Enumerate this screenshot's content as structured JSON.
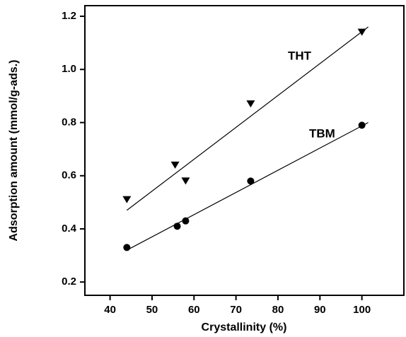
{
  "chart_data": {
    "type": "scatter",
    "x_label": "Crystallinity (%)",
    "y_label": "Adsorption amount (mmol/g-ads.)",
    "xlim": [
      34,
      110
    ],
    "xticks": [
      40,
      50,
      60,
      70,
      80,
      90,
      100
    ],
    "ylim": [
      0.15,
      1.24
    ],
    "yticks": [
      0.2,
      0.4,
      0.6,
      0.8,
      {
        "value": 1,
        "label": "1.0"
      },
      1.2
    ],
    "series": [
      {
        "name": "THT",
        "color": "#000000",
        "marker": "triangle-down",
        "x": [
          44,
          55.5,
          58,
          73.5,
          100
        ],
        "values": [
          0.51,
          0.64,
          0.58,
          0.87,
          1.14
        ],
        "fit": {
          "x": [
            44,
            101.5
          ],
          "values": [
            0.47,
            1.16
          ]
        }
      },
      {
        "name": "TBM",
        "color": "#000000",
        "marker": "circle",
        "x": [
          44,
          56,
          58,
          73.5,
          100
        ],
        "values": [
          0.33,
          0.41,
          0.43,
          0.58,
          0.79
        ],
        "fit": {
          "x": [
            44,
            101.5
          ],
          "values": [
            0.32,
            0.8
          ]
        }
      }
    ]
  }
}
